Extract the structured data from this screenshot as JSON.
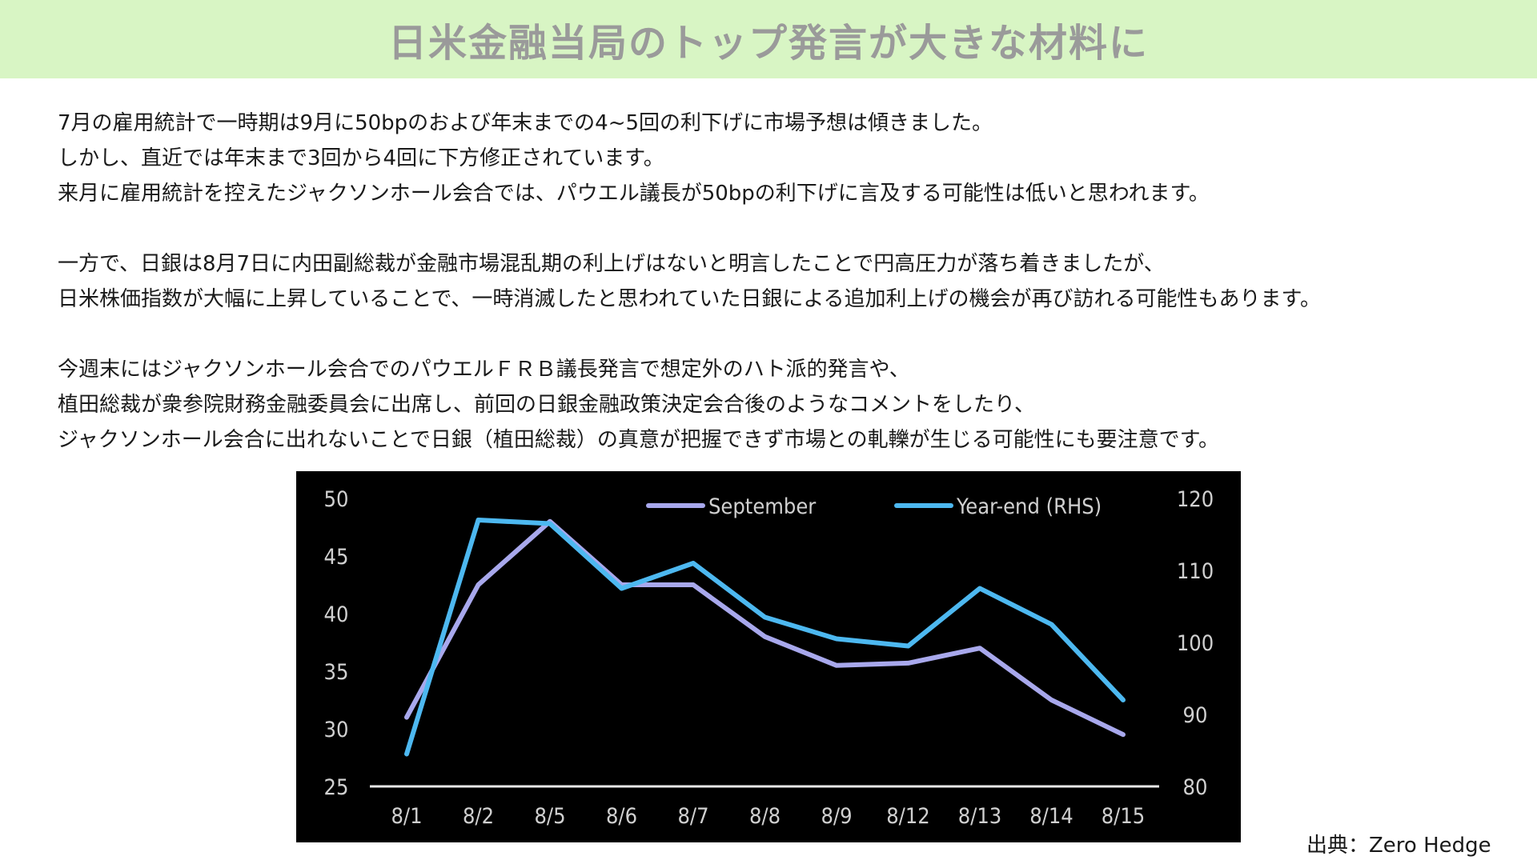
{
  "header": {
    "title": "日米金融当局のトップ発言が大きな材料に"
  },
  "body": {
    "paragraphs": [
      {
        "lines": [
          "7月の雇用統計で一時期は9月に50bpのおよび年末までの4~5回の利下げに市場予想は傾きました。",
          "しかし、直近では年末まで3回から4回に下方修正されています。",
          "来月に雇用統計を控えたジャクソンホール会合では、パウエル議長が50bpの利下げに言及する可能性は低いと思われます。"
        ]
      },
      {
        "lines": [
          "一方で、日銀は8月7日に内田副総裁が金融市場混乱期の利上げはないと明言したことで円高圧力が落ち着きましたが、",
          "日米株価指数が大幅に上昇していることで、一時消滅したと思われていた日銀による追加利上げの機会が再び訪れる可能性もあります。"
        ]
      },
      {
        "lines": [
          "今週末にはジャクソンホール会合でのパウエルＦＲＢ議長発言で想定外のハト派的発言や、",
          "植田総裁が衆参院財務金融委員会に出席し、前回の日銀金融政策決定会合後のようなコメントをしたり、",
          "ジャクソンホール会合に出れないことで日銀（植田総裁）の真意が把握できず市場との軋轢が生じる可能性にも要注意です。"
        ]
      }
    ]
  },
  "source": "出典：Zero Hedge",
  "chart_data": {
    "type": "line",
    "categories": [
      "8/1",
      "8/2",
      "8/5",
      "8/6",
      "8/7",
      "8/8",
      "8/9",
      "8/12",
      "8/13",
      "8/14",
      "8/15"
    ],
    "series": [
      {
        "name": "September",
        "axis": "left",
        "color": "#a8a8ec",
        "values": [
          31,
          42.5,
          48,
          42.5,
          42.5,
          38,
          35.5,
          35.7,
          37,
          32.5,
          29.5
        ]
      },
      {
        "name": "Year-end (RHS)",
        "axis": "right",
        "color": "#4db8f0",
        "values": [
          84.5,
          117,
          116.5,
          107.5,
          111,
          103.5,
          100.5,
          99.5,
          107.5,
          102.5,
          92
        ]
      }
    ],
    "y_left": {
      "min": 25,
      "max": 50,
      "ticks": [
        25,
        30,
        35,
        40,
        45,
        50
      ]
    },
    "y_right": {
      "min": 80,
      "max": 120,
      "ticks": [
        80,
        90,
        100,
        110,
        120
      ]
    },
    "legend_position": "top-right",
    "background": "#000000",
    "axis_line_color": "#e8e8e8",
    "tick_label_color": "#d0d0d0"
  }
}
